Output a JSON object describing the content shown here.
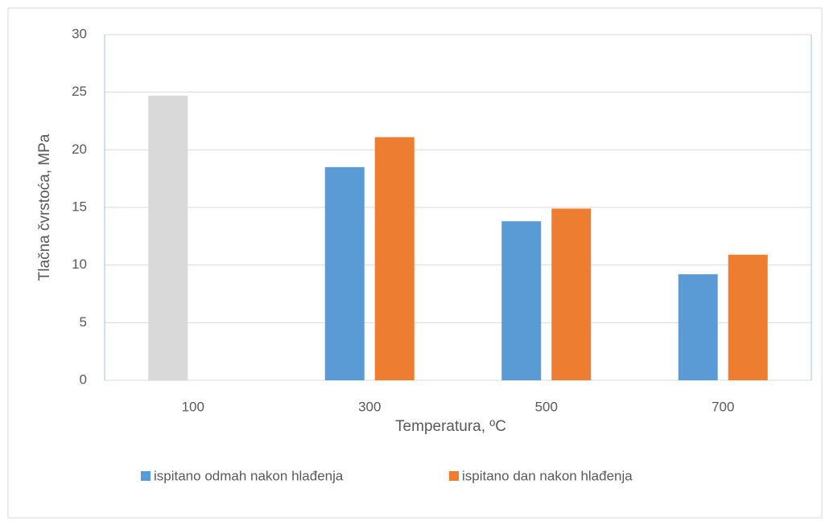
{
  "chart_data": {
    "type": "bar",
    "categories": [
      "100",
      "300",
      "500",
      "700"
    ],
    "series": [
      {
        "name": "ispitano odmah nakon hlađenja",
        "color": "#5b9bd5",
        "colors": [
          "#d9d9d9",
          "#5b9bd5",
          "#5b9bd5",
          "#5b9bd5"
        ],
        "values": [
          24.7,
          18.5,
          13.8,
          9.2
        ]
      },
      {
        "name": "ispitano dan nakon hlađenja",
        "color": "#ed7d31",
        "values": [
          null,
          21.1,
          14.9,
          10.9
        ]
      }
    ],
    "ylim": [
      0,
      30
    ],
    "yticks": [
      0,
      5,
      10,
      15,
      20,
      25,
      30
    ],
    "x_label": "Temperatura, ºC",
    "y_label": "Tlačna čvrstoća, MPa",
    "grid": true,
    "legend": "bottom"
  }
}
